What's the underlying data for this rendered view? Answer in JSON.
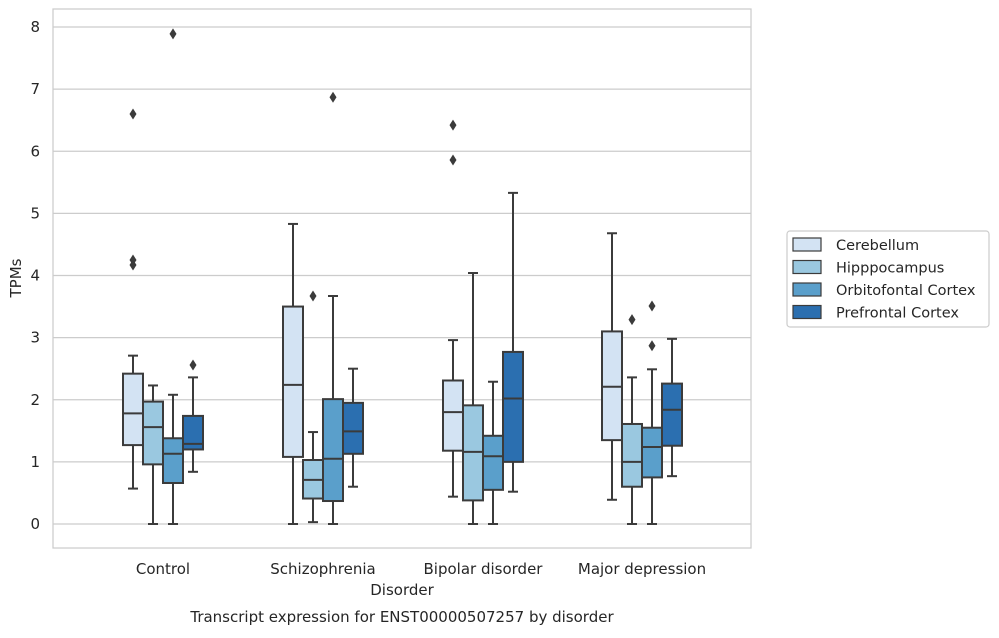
{
  "chart_data": {
    "type": "box",
    "title": "Transcript expression for ENST00000507257 by disorder",
    "xlabel": "Disorder",
    "ylabel": "TPMs",
    "ylim": [
      -0.38,
      8.3
    ],
    "yticks": [
      0,
      1,
      2,
      3,
      4,
      5,
      6,
      7,
      8
    ],
    "grid": true,
    "legend_position": "right",
    "categories": [
      "Control",
      "Schizophrenia",
      "Bipolar disorder",
      "Major depression"
    ],
    "series": [
      {
        "name": "Cerebellum",
        "color": "#d3e3f3",
        "boxes": [
          {
            "whisker_low": 0.57,
            "q1": 1.27,
            "median": 1.78,
            "q3": 2.42,
            "whisker_high": 2.71,
            "outliers": [
              4.17,
              4.25,
              6.6
            ]
          },
          {
            "whisker_low": 0.0,
            "q1": 1.08,
            "median": 2.24,
            "q3": 3.5,
            "whisker_high": 4.83,
            "outliers": []
          },
          {
            "whisker_low": 0.44,
            "q1": 1.18,
            "median": 1.8,
            "q3": 2.31,
            "whisker_high": 2.96,
            "outliers": [
              5.86,
              6.42
            ]
          },
          {
            "whisker_low": 0.39,
            "q1": 1.35,
            "median": 2.21,
            "q3": 3.1,
            "whisker_high": 4.68,
            "outliers": []
          }
        ]
      },
      {
        "name": "Hipppocampus",
        "color": "#9ac8e0",
        "boxes": [
          {
            "whisker_low": 0.0,
            "q1": 0.96,
            "median": 1.56,
            "q3": 1.97,
            "whisker_high": 2.23,
            "outliers": []
          },
          {
            "whisker_low": 0.03,
            "q1": 0.41,
            "median": 0.71,
            "q3": 1.03,
            "whisker_high": 1.48,
            "outliers": [
              3.67
            ]
          },
          {
            "whisker_low": 0.0,
            "q1": 0.38,
            "median": 1.16,
            "q3": 1.91,
            "whisker_high": 4.04,
            "outliers": []
          },
          {
            "whisker_low": 0.0,
            "q1": 0.6,
            "median": 1.0,
            "q3": 1.61,
            "whisker_high": 2.36,
            "outliers": [
              3.29
            ]
          }
        ]
      },
      {
        "name": "Orbitofontal Cortex",
        "color": "#5a9fcb",
        "boxes": [
          {
            "whisker_low": 0.0,
            "q1": 0.66,
            "median": 1.13,
            "q3": 1.38,
            "whisker_high": 2.08,
            "outliers": [
              7.89
            ]
          },
          {
            "whisker_low": 0.0,
            "q1": 0.37,
            "median": 1.05,
            "q3": 2.01,
            "whisker_high": 3.67,
            "outliers": [
              6.87
            ]
          },
          {
            "whisker_low": 0.0,
            "q1": 0.55,
            "median": 1.09,
            "q3": 1.42,
            "whisker_high": 2.29,
            "outliers": []
          },
          {
            "whisker_low": 0.0,
            "q1": 0.75,
            "median": 1.24,
            "q3": 1.55,
            "whisker_high": 2.49,
            "outliers": [
              2.87,
              3.51
            ]
          }
        ]
      },
      {
        "name": "Prefrontal Cortex",
        "color": "#2b6fb0",
        "boxes": [
          {
            "whisker_low": 0.84,
            "q1": 1.2,
            "median": 1.29,
            "q3": 1.74,
            "whisker_high": 2.36,
            "outliers": [
              2.56
            ]
          },
          {
            "whisker_low": 0.6,
            "q1": 1.13,
            "median": 1.49,
            "q3": 1.95,
            "whisker_high": 2.5,
            "outliers": []
          },
          {
            "whisker_low": 0.52,
            "q1": 1.0,
            "median": 2.02,
            "q3": 2.77,
            "whisker_high": 5.33,
            "outliers": []
          },
          {
            "whisker_low": 0.77,
            "q1": 1.26,
            "median": 1.84,
            "q3": 2.26,
            "whisker_high": 2.98,
            "outliers": []
          }
        ]
      }
    ]
  }
}
